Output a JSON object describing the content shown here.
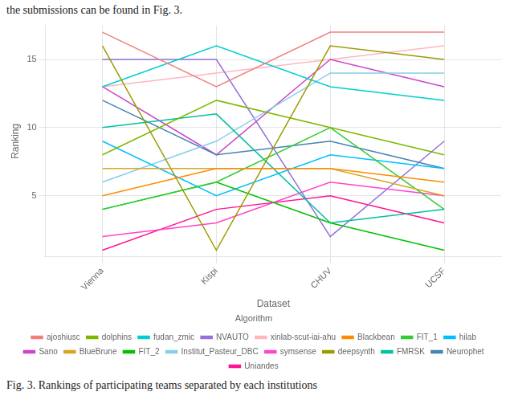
{
  "chart_data": {
    "type": "line",
    "categories": [
      "Vienna",
      "Kispi",
      "CHUV",
      "UCSF"
    ],
    "series": [
      {
        "name": "ajoshiusc",
        "color": "#F08080",
        "values": [
          17,
          13,
          17,
          17
        ]
      },
      {
        "name": "Blackbean",
        "color": "#FF8C00",
        "values": [
          5,
          7,
          7,
          6
        ]
      },
      {
        "name": "BlueBrune",
        "color": "#DAA520",
        "values": [
          7,
          7,
          7,
          5
        ]
      },
      {
        "name": "deepsynth",
        "color": "#9B9B00",
        "values": [
          16,
          1,
          16,
          15
        ]
      },
      {
        "name": "dolphins",
        "color": "#7CB800",
        "values": [
          8,
          12,
          10,
          8
        ]
      },
      {
        "name": "FIT_1",
        "color": "#32CD32",
        "values": [
          4,
          6,
          10,
          4
        ]
      },
      {
        "name": "FIT_2",
        "color": "#00C000",
        "values": [
          4,
          6,
          3,
          1
        ]
      },
      {
        "name": "FMRSK",
        "color": "#00C0A0",
        "values": [
          10,
          11,
          3,
          4
        ]
      },
      {
        "name": "fudan_zmic",
        "color": "#00CED1",
        "values": [
          13,
          16,
          13,
          12
        ]
      },
      {
        "name": "hilab",
        "color": "#00BFFF",
        "values": [
          9,
          5,
          8,
          7
        ]
      },
      {
        "name": "Institut_Pasteur_DBC",
        "color": "#87CEEB",
        "values": [
          6,
          9,
          14,
          14
        ]
      },
      {
        "name": "Neurophet",
        "color": "#4682B4",
        "values": [
          12,
          8,
          9,
          7
        ]
      },
      {
        "name": "NVAUTO",
        "color": "#9370DB",
        "values": [
          15,
          15,
          2,
          9
        ]
      },
      {
        "name": "Sano",
        "color": "#CC44CC",
        "values": [
          13,
          8,
          15,
          13
        ]
      },
      {
        "name": "symsense",
        "color": "#FF44CC",
        "values": [
          2,
          3,
          6,
          5
        ]
      },
      {
        "name": "Uniandes",
        "color": "#FF1493",
        "values": [
          1,
          4,
          5,
          3
        ]
      },
      {
        "name": "xinlab-scut-iai-ahu",
        "color": "#FFB6C1",
        "values": [
          13,
          14,
          15,
          16
        ]
      }
    ],
    "legend_order": [
      "ajoshiusc",
      "dolphins",
      "fudan_zmic",
      "NVAUTO",
      "xinlab-scut-iai-ahu",
      "Blackbean",
      "FIT_1",
      "hilab",
      "Sano",
      "BlueBrune",
      "FIT_2",
      "Institut_Pasteur_DBC",
      "symsense",
      "deepsynth",
      "FMRSK",
      "Neurophet",
      "Uniandes"
    ],
    "legend_title": "Algorithm",
    "legend": "bottom",
    "xlabel": "Dataset",
    "ylabel": "Ranking",
    "ylim": [
      0.5,
      17.5
    ],
    "yticks": [
      5,
      10,
      15
    ],
    "grid": true,
    "annotations": [
      "the submissions can be found in Fig. 3.",
      "Fig. 3. Rankings of participating teams separated by each institutions"
    ]
  }
}
